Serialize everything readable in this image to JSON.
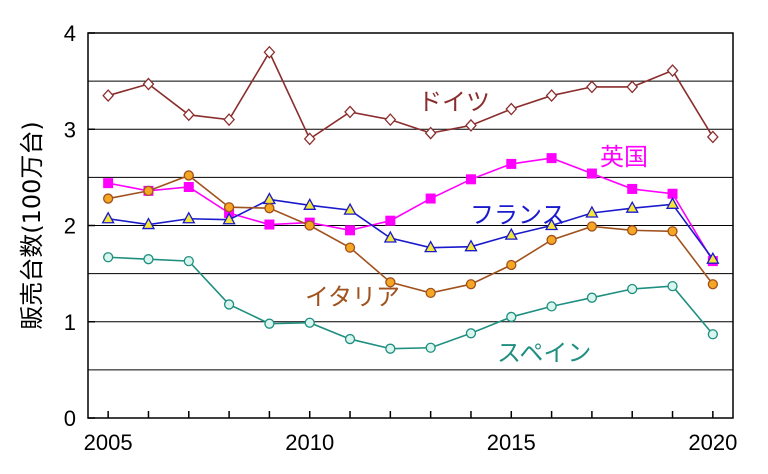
{
  "chart_data": {
    "type": "line",
    "title": "",
    "xlabel": "",
    "ylabel": "販売台数(100万台)",
    "xlim": [
      2005,
      2020
    ],
    "ylim": [
      0,
      4
    ],
    "x_ticks": [
      "2005",
      "2010",
      "2015",
      "2020"
    ],
    "y_ticks": [
      "0",
      "1",
      "2",
      "3",
      "4"
    ],
    "grid": "horizontal",
    "x": [
      2005,
      2006,
      2007,
      2008,
      2009,
      2010,
      2011,
      2012,
      2013,
      2014,
      2015,
      2016,
      2017,
      2018,
      2019,
      2020
    ],
    "series": [
      {
        "name": "ドイツ",
        "color": "#8b2d2d",
        "marker": "diamond",
        "values": [
          3.35,
          3.47,
          3.15,
          3.1,
          3.8,
          2.9,
          3.18,
          3.1,
          2.96,
          3.04,
          3.21,
          3.35,
          3.44,
          3.44,
          3.61,
          2.92
        ]
      },
      {
        "name": "英国",
        "color": "#ff00ff",
        "marker": "square",
        "values": [
          2.44,
          2.36,
          2.4,
          2.13,
          2.01,
          2.03,
          1.95,
          2.05,
          2.28,
          2.48,
          2.64,
          2.7,
          2.54,
          2.38,
          2.33,
          1.63
        ]
      },
      {
        "name": "フランス",
        "color": "#1a1acc",
        "marker": "triangle",
        "values": [
          2.07,
          2.01,
          2.07,
          2.06,
          2.27,
          2.21,
          2.16,
          1.87,
          1.77,
          1.78,
          1.9,
          2.0,
          2.13,
          2.18,
          2.22,
          1.65
        ]
      },
      {
        "name": "イタリア",
        "color": "#a0521e",
        "marker": "circle",
        "values": [
          2.28,
          2.36,
          2.52,
          2.19,
          2.18,
          2.0,
          1.77,
          1.41,
          1.3,
          1.39,
          1.59,
          1.85,
          1.99,
          1.95,
          1.94,
          1.39
        ]
      },
      {
        "name": "スペイン",
        "color": "#1f8f80",
        "marker": "circle-open",
        "values": [
          1.67,
          1.65,
          1.63,
          1.18,
          0.98,
          0.99,
          0.82,
          0.72,
          0.73,
          0.88,
          1.05,
          1.16,
          1.25,
          1.34,
          1.37,
          0.87
        ]
      }
    ]
  }
}
